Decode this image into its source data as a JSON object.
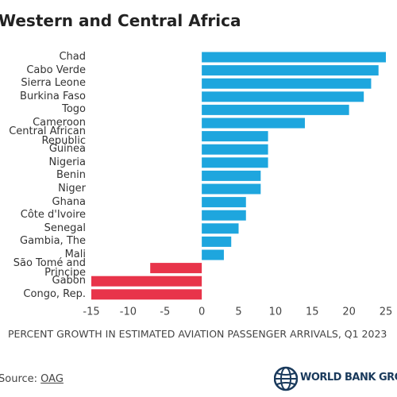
{
  "chart_data": {
    "type": "bar",
    "orientation": "horizontal",
    "title": "Western and Central Africa",
    "categories": [
      "Chad",
      "Cabo Verde",
      "Sierra Leone",
      "Burkina Faso",
      "Togo",
      "Cameroon",
      "Central African Republic",
      "Guinea",
      "Nigeria",
      "Benin",
      "Niger",
      "Ghana",
      "Côte d'Ivoire",
      "Senegal",
      "Gambia, The",
      "Mali",
      "São Tomé and Principe",
      "Gabon",
      "Congo, Rep."
    ],
    "values": [
      25,
      24,
      23,
      22,
      20,
      14,
      9,
      9,
      9,
      8,
      8,
      6,
      6,
      5,
      4,
      3,
      -7,
      -15,
      -15
    ],
    "color": "#1ea6de",
    "negative_color": "#e8344a",
    "xlim": [
      -15,
      25
    ],
    "xticks": [
      -15,
      -10,
      -5,
      0,
      5,
      10,
      15,
      20,
      25
    ],
    "x_label": "PERCENT GROWTH IN ESTIMATED AVIATION PASSENGER ARRIVALS, Q1 2023",
    "source_label": "Source:",
    "source": "OAG",
    "logo_text": "WORLD BANK GROUP"
  }
}
